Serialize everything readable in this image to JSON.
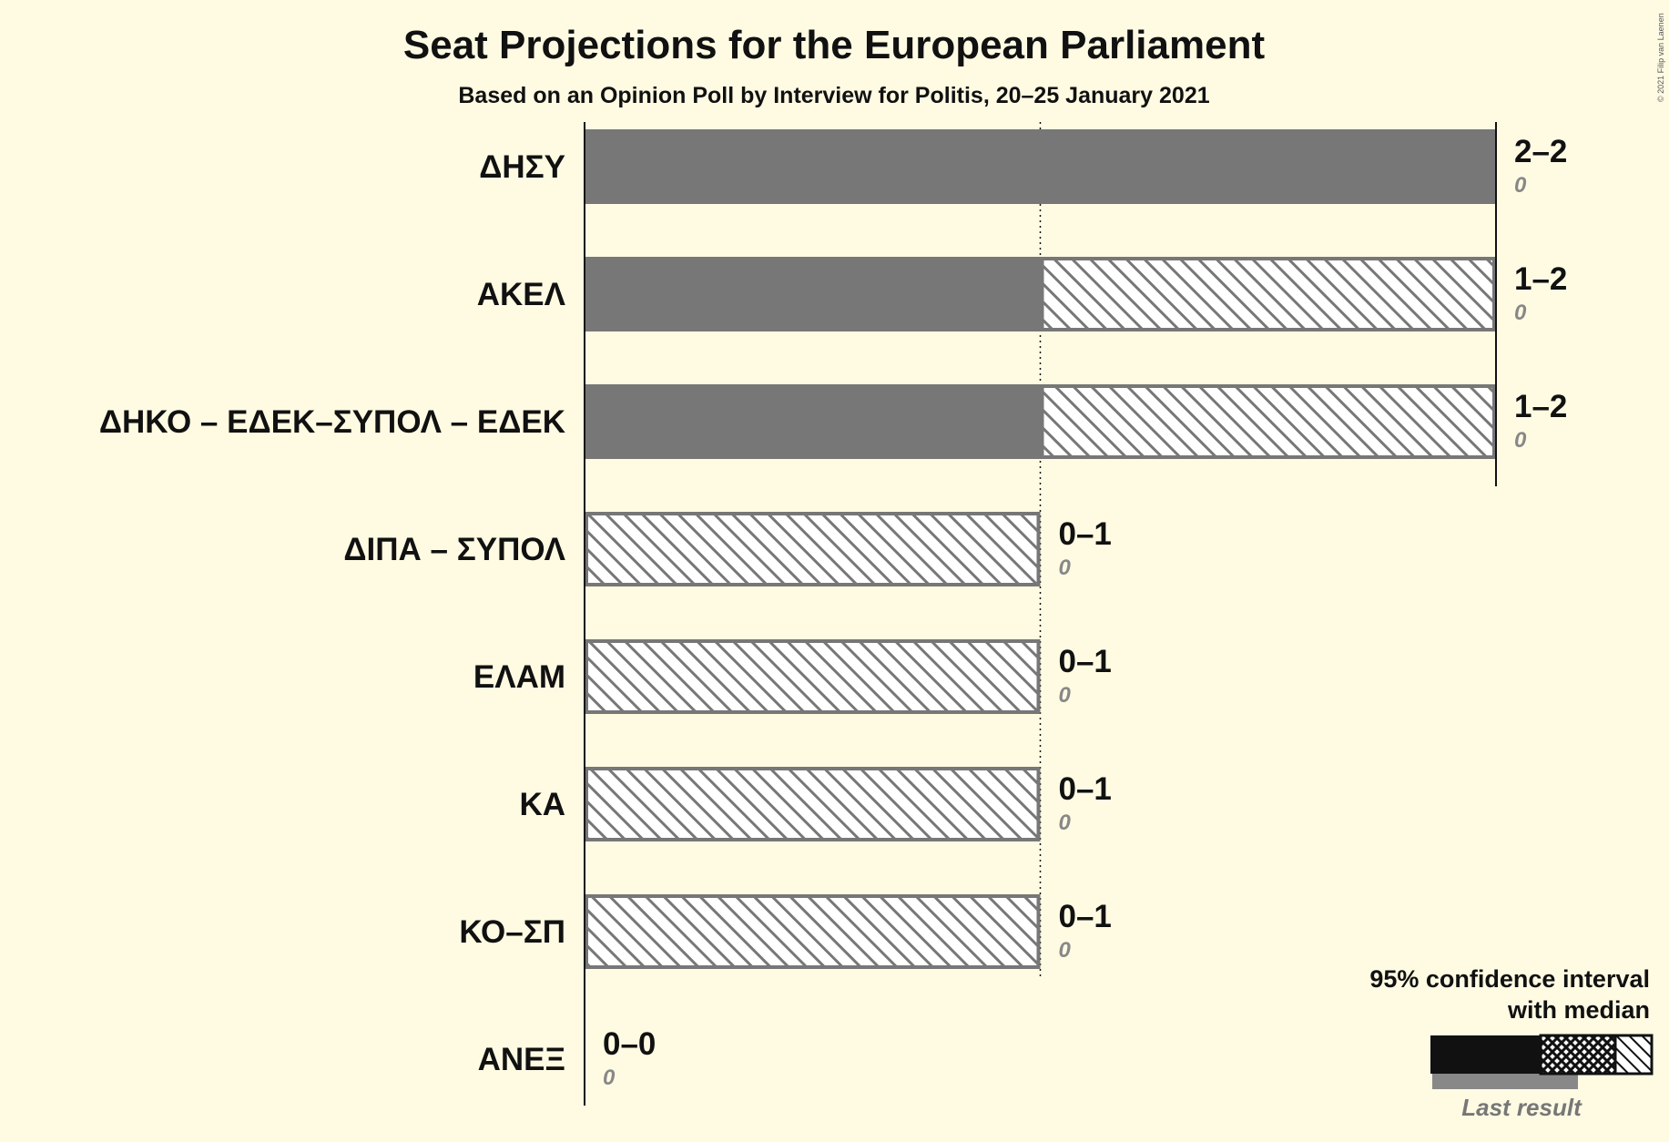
{
  "colors": {
    "background": "#fffbe3",
    "bar": "#777777",
    "hatch": "#777777",
    "legend_bar": "#111111",
    "legend_last": "#888888"
  },
  "chart_data": {
    "type": "bar",
    "orientation": "horizontal",
    "title": "Seat Projections for the European Parliament",
    "subtitle": "Based on an Opinion Poll by Interview for Politis, 20–25 January 2021",
    "xlim": [
      0,
      2
    ],
    "gridlines": [
      1
    ],
    "categories": [
      "ΔΗΣΥ",
      "ΑΚΕΛ",
      "ΔΗΚΟ – ΕΔΕΚ–ΣΥΠΟΛ – ΕΔΕΚ",
      "ΔΙΠΑ – ΣΥΠΟΛ",
      "ΕΛΑΜ",
      "ΚΑ",
      "ΚΟ–ΣΠ",
      "ΑΝΕΞ"
    ],
    "ci_low": [
      2,
      1,
      1,
      0,
      0,
      0,
      0,
      0
    ],
    "ci_high": [
      2,
      2,
      2,
      1,
      1,
      1,
      1,
      0
    ],
    "range_labels": [
      "2–2",
      "1–2",
      "1–2",
      "0–1",
      "0–1",
      "0–1",
      "0–1",
      "0–0"
    ],
    "last_result": [
      0,
      0,
      0,
      0,
      0,
      0,
      0,
      0
    ],
    "last_result_labels": [
      "0",
      "0",
      "0",
      "0",
      "0",
      "0",
      "0",
      "0"
    ]
  },
  "legend": {
    "line1": "95% confidence interval",
    "line2": "with median",
    "last_result": "Last result"
  },
  "copyright": "© 2021 Filip van Laenen"
}
